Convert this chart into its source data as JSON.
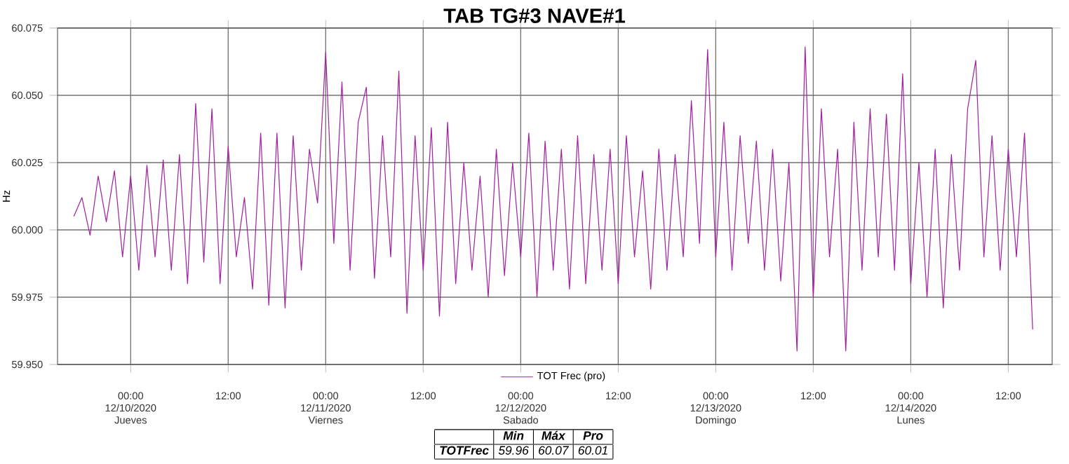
{
  "chart_data": {
    "type": "line",
    "title": "TAB TG#3 NAVE#1",
    "ylabel": "Hz",
    "xlim": [
      "2020-12-09T15:00",
      "2020-12-14T17:24"
    ],
    "ylim": [
      59.95,
      60.075
    ],
    "xticks": [
      {
        "value": "2020-12-10T00:00",
        "label": "00:00 12/10/2020 Jueves"
      },
      {
        "value": "2020-12-10T12:00",
        "label": "12:00"
      },
      {
        "value": "2020-12-11T00:00",
        "label": "00:00 12/11/2020 Viernes"
      },
      {
        "value": "2020-12-11T12:00",
        "label": "12:00"
      },
      {
        "value": "2020-12-12T00:00",
        "label": "00:00 12/12/2020 Sabado"
      },
      {
        "value": "2020-12-12T12:00",
        "label": "12:00"
      },
      {
        "value": "2020-12-13T00:00",
        "label": "00:00 12/13/2020 Domingo"
      },
      {
        "value": "2020-12-13T12:00",
        "label": "12:00"
      },
      {
        "value": "2020-12-14T00:00",
        "label": "00:00 12/14/2020 Lunes"
      },
      {
        "value": "2020-12-14T12:00",
        "label": "12:00"
      }
    ],
    "yticks": [
      {
        "value": 59.95,
        "label": "59.950"
      },
      {
        "value": 59.975,
        "label": "59.975"
      },
      {
        "value": 60.0,
        "label": "60.000"
      },
      {
        "value": 60.025,
        "label": "60.025"
      },
      {
        "value": 60.05,
        "label": "60.050"
      },
      {
        "value": 60.075,
        "label": "60.075"
      }
    ],
    "grid": true,
    "legend": "bottom",
    "annotations": [
      "Min",
      "Máx",
      "Pro",
      "TOTFrec",
      "59.96",
      "60.07",
      "60.01"
    ],
    "series": [
      {
        "name": "TOT Frec (pro)",
        "color": "#a0209f",
        "x": [
          "2020-12-09T17:00",
          "2020-12-09T18:00",
          "2020-12-09T19:00",
          "2020-12-09T20:00",
          "2020-12-09T21:00",
          "2020-12-09T22:00",
          "2020-12-09T23:00",
          "2020-12-10T00:00",
          "2020-12-10T01:00",
          "2020-12-10T02:00",
          "2020-12-10T03:00",
          "2020-12-10T04:00",
          "2020-12-10T05:00",
          "2020-12-10T06:00",
          "2020-12-10T07:00",
          "2020-12-10T08:00",
          "2020-12-10T09:00",
          "2020-12-10T10:00",
          "2020-12-10T11:00",
          "2020-12-10T12:00",
          "2020-12-10T13:00",
          "2020-12-10T14:00",
          "2020-12-10T15:00",
          "2020-12-10T16:00",
          "2020-12-10T17:00",
          "2020-12-10T18:00",
          "2020-12-10T19:00",
          "2020-12-10T20:00",
          "2020-12-10T21:00",
          "2020-12-10T22:00",
          "2020-12-10T23:00",
          "2020-12-11T00:00",
          "2020-12-11T01:00",
          "2020-12-11T02:00",
          "2020-12-11T03:00",
          "2020-12-11T04:00",
          "2020-12-11T05:00",
          "2020-12-11T06:00",
          "2020-12-11T07:00",
          "2020-12-11T08:00",
          "2020-12-11T09:00",
          "2020-12-11T10:00",
          "2020-12-11T11:00",
          "2020-12-11T12:00",
          "2020-12-11T13:00",
          "2020-12-11T14:00",
          "2020-12-11T15:00",
          "2020-12-11T16:00",
          "2020-12-11T17:00",
          "2020-12-11T18:00",
          "2020-12-11T19:00",
          "2020-12-11T20:00",
          "2020-12-11T21:00",
          "2020-12-11T22:00",
          "2020-12-11T23:00",
          "2020-12-12T00:00",
          "2020-12-12T01:00",
          "2020-12-12T02:00",
          "2020-12-12T03:00",
          "2020-12-12T04:00",
          "2020-12-12T05:00",
          "2020-12-12T06:00",
          "2020-12-12T07:00",
          "2020-12-12T08:00",
          "2020-12-12T09:00",
          "2020-12-12T10:00",
          "2020-12-12T11:00",
          "2020-12-12T12:00",
          "2020-12-12T13:00",
          "2020-12-12T14:00",
          "2020-12-12T15:00",
          "2020-12-12T16:00",
          "2020-12-12T17:00",
          "2020-12-12T18:00",
          "2020-12-12T19:00",
          "2020-12-12T20:00",
          "2020-12-12T21:00",
          "2020-12-12T22:00",
          "2020-12-12T23:00",
          "2020-12-13T00:00",
          "2020-12-13T01:00",
          "2020-12-13T02:00",
          "2020-12-13T03:00",
          "2020-12-13T04:00",
          "2020-12-13T05:00",
          "2020-12-13T06:00",
          "2020-12-13T07:00",
          "2020-12-13T08:00",
          "2020-12-13T09:00",
          "2020-12-13T10:00",
          "2020-12-13T11:00",
          "2020-12-13T12:00",
          "2020-12-13T13:00",
          "2020-12-13T14:00",
          "2020-12-13T15:00",
          "2020-12-13T16:00",
          "2020-12-13T17:00",
          "2020-12-13T18:00",
          "2020-12-13T19:00",
          "2020-12-13T20:00",
          "2020-12-13T21:00",
          "2020-12-13T22:00",
          "2020-12-13T23:00",
          "2020-12-14T00:00",
          "2020-12-14T01:00",
          "2020-12-14T02:00",
          "2020-12-14T03:00",
          "2020-12-14T04:00",
          "2020-12-14T05:00",
          "2020-12-14T06:00",
          "2020-12-14T07:00",
          "2020-12-14T08:00",
          "2020-12-14T09:00",
          "2020-12-14T10:00",
          "2020-12-14T11:00",
          "2020-12-14T12:00",
          "2020-12-14T13:00",
          "2020-12-14T14:00",
          "2020-12-14T15:00"
        ],
        "values": [
          60.005,
          60.012,
          59.998,
          60.02,
          60.003,
          60.022,
          59.99,
          60.02,
          59.985,
          60.024,
          59.99,
          60.026,
          59.985,
          60.028,
          59.98,
          60.047,
          59.988,
          60.045,
          59.98,
          60.031,
          59.99,
          60.012,
          59.978,
          60.036,
          59.972,
          60.036,
          59.971,
          60.035,
          59.985,
          60.03,
          60.01,
          60.066,
          59.995,
          60.055,
          59.985,
          60.04,
          60.053,
          59.982,
          60.035,
          59.99,
          60.059,
          59.969,
          60.035,
          59.985,
          60.038,
          59.968,
          60.04,
          59.98,
          60.025,
          59.985,
          60.02,
          59.975,
          60.03,
          59.983,
          60.025,
          59.99,
          60.036,
          59.975,
          60.033,
          59.985,
          60.03,
          59.978,
          60.035,
          59.98,
          60.028,
          59.985,
          60.03,
          59.98,
          60.035,
          59.99,
          60.022,
          59.978,
          60.03,
          59.985,
          60.028,
          59.99,
          60.048,
          59.995,
          60.067,
          59.99,
          60.04,
          59.985,
          60.035,
          59.995,
          60.033,
          59.985,
          60.03,
          59.981,
          60.025,
          59.955,
          60.068,
          59.975,
          60.045,
          59.99,
          60.03,
          59.955,
          60.04,
          59.985,
          60.045,
          59.99,
          60.043,
          59.985,
          60.058,
          59.98,
          60.025,
          59.975,
          60.03,
          59.971,
          60.028,
          59.985,
          60.045,
          60.063,
          59.99,
          60.035,
          59.985,
          60.03,
          59.99,
          60.036,
          59.963
        ]
      }
    ]
  }
}
